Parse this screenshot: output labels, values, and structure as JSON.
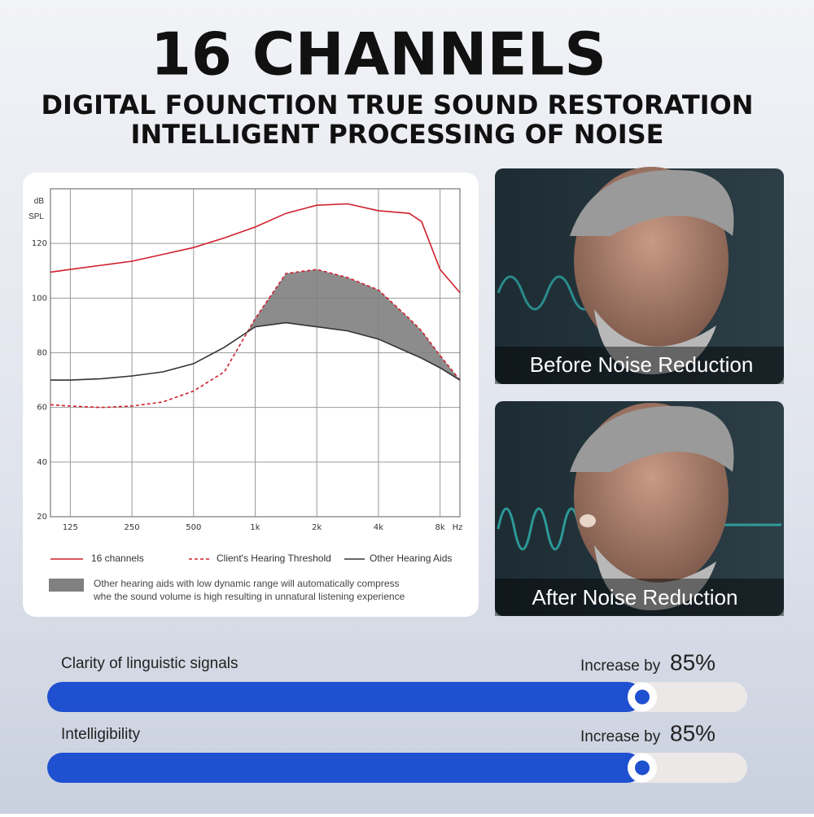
{
  "header": {
    "title": "16 CHANNELS",
    "subtitle": [
      "DIGITAL FOUNCTION TRUE SOUND RESTORATION",
      "INTELLIGENT PROCESSING OF NOISE"
    ]
  },
  "chart_data": {
    "type": "line",
    "ylabel": "dB SPL",
    "xlabel": "Hz",
    "x": [
      100,
      125,
      177,
      250,
      354,
      500,
      707,
      1000,
      1414,
      2000,
      2828,
      4000,
      5657,
      6500,
      8000,
      10000
    ],
    "xlim": [
      100,
      10000
    ],
    "xlog": true,
    "xticks": [
      125,
      250,
      500,
      {
        "value": 1000,
        "label": "1k"
      },
      {
        "value": 2000,
        "label": "2k"
      },
      {
        "value": 4000,
        "label": "4k"
      },
      {
        "value": 8000,
        "label": "8k"
      }
    ],
    "ylim": [
      20,
      140
    ],
    "yticks": [
      20,
      40,
      60,
      80,
      100,
      120
    ],
    "grid": true,
    "series": [
      {
        "name": "16 channels",
        "color": "#d0202c",
        "line_style": "solid",
        "values": [
          109.5,
          110.5,
          112,
          113.5,
          116,
          118.5,
          122,
          126,
          131,
          134,
          134.5,
          132,
          131,
          128,
          110.5,
          102
        ]
      },
      {
        "name": "Client's Hearing Threshold",
        "color": "#d0202c",
        "line_style": "dashed",
        "values": [
          61,
          60.5,
          60,
          60.5,
          62,
          66,
          73,
          92.5,
          109,
          110.5,
          107.5,
          103,
          92.5,
          88,
          79,
          70
        ]
      },
      {
        "name": "Other Hearing Aids",
        "color": "#333333",
        "line_style": "solid",
        "values": [
          70,
          70,
          70.5,
          71.5,
          73,
          76,
          82,
          89.5,
          91,
          89.5,
          88,
          85,
          80,
          78,
          74.5,
          70
        ]
      }
    ],
    "annotation": [
      "Other hearing aids with low dynamic range will automatically compress",
      "whe the sound volume is high  resulting in unnatural listening experience"
    ],
    "annotation_color": "#808080"
  },
  "photos": [
    {
      "caption": "Before Noise Reduction"
    },
    {
      "caption": "After Noise Reduction"
    }
  ],
  "metrics": [
    {
      "label": "Clarity of linguistic signals",
      "prefix": "Increase by",
      "value": 85,
      "value_label": "85%"
    },
    {
      "label": "Intelligibility",
      "prefix": "Increase by",
      "value": 85,
      "value_label": "85%"
    }
  ]
}
